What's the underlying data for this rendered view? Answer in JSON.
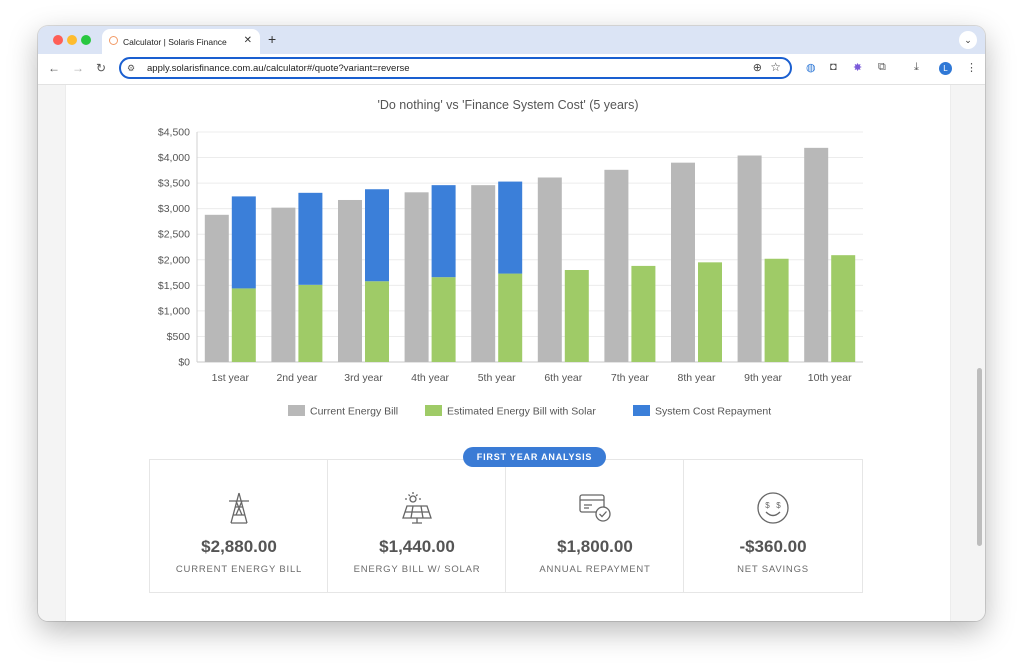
{
  "browser": {
    "tab_title": "Calculator | Solaris Finance",
    "url": "apply.solarisfinance.com.au/calculator#/quote?variant=reverse",
    "avatar_letter": "L"
  },
  "chart_data": {
    "type": "bar",
    "title": "'Do nothing' vs 'Finance System Cost' (5 years)",
    "categories": [
      "1st year",
      "2nd year",
      "3rd year",
      "4th year",
      "5th year",
      "6th year",
      "7th year",
      "8th year",
      "9th year",
      "10th year"
    ],
    "series": [
      {
        "name": "Current Energy Bill",
        "color": "#b8b8b8",
        "stack": "a",
        "values": [
          2880,
          3020,
          3170,
          3320,
          3460,
          3610,
          3760,
          3900,
          4040,
          4190
        ]
      },
      {
        "name": "Estimated Energy Bill with Solar",
        "color": "#9fcb67",
        "stack": "b",
        "values": [
          1440,
          1510,
          1580,
          1660,
          1730,
          1800,
          1880,
          1950,
          2020,
          2090
        ]
      },
      {
        "name": "System Cost Repayment",
        "color": "#3b7fd9",
        "stack": "b",
        "values": [
          1800,
          1800,
          1800,
          1800,
          1800,
          0,
          0,
          0,
          0,
          0
        ]
      }
    ],
    "ylim": [
      0,
      4500
    ],
    "yticks": [
      0,
      500,
      1000,
      1500,
      2000,
      2500,
      3000,
      3500,
      4000,
      4500
    ],
    "ytick_labels": [
      "$0",
      "$500",
      "$1,000",
      "$1,500",
      "$2,000",
      "$2,500",
      "$3,000",
      "$3,500",
      "$4,000",
      "$4,500"
    ],
    "grid": true,
    "legend_position": "bottom"
  },
  "analysis": {
    "badge": "FIRST YEAR ANALYSIS",
    "stats": [
      {
        "icon": "power-tower-icon",
        "value": "$2,880.00",
        "label": "CURRENT ENERGY BILL"
      },
      {
        "icon": "solar-panel-icon",
        "value": "$1,440.00",
        "label": "ENERGY BILL W/ SOLAR"
      },
      {
        "icon": "payment-card-check-icon",
        "value": "$1,800.00",
        "label": "ANNUAL REPAYMENT"
      },
      {
        "icon": "smiley-dollar-icon",
        "value": "-$360.00",
        "label": "NET SAVINGS"
      }
    ]
  }
}
